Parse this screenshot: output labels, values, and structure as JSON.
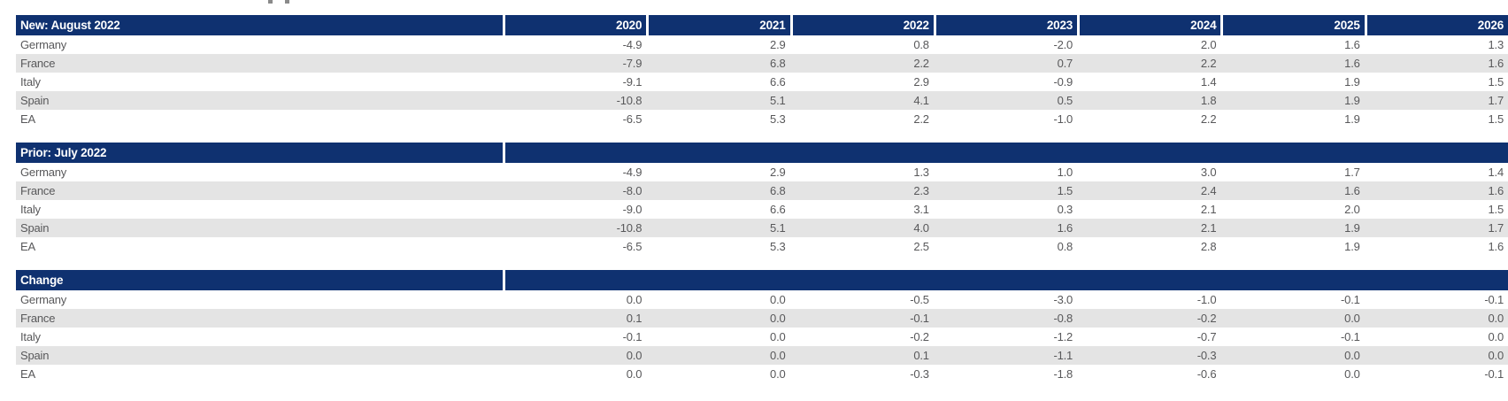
{
  "colors": {
    "header_navy": "#0f3170",
    "row_alt_gray": "#e4e4e4",
    "text_gray": "#58585a",
    "header_text": "#ffffff"
  },
  "chart_data": {
    "type": "table",
    "years": [
      "2020",
      "2021",
      "2022",
      "2023",
      "2024",
      "2025",
      "2026"
    ],
    "sections": [
      {
        "label": "New: August 2022",
        "rows": [
          {
            "name": "Germany",
            "values": [
              "-4.9",
              "2.9",
              "0.8",
              "-2.0",
              "2.0",
              "1.6",
              "1.3"
            ]
          },
          {
            "name": "France",
            "values": [
              "-7.9",
              "6.8",
              "2.2",
              "0.7",
              "2.2",
              "1.6",
              "1.6"
            ]
          },
          {
            "name": "Italy",
            "values": [
              "-9.1",
              "6.6",
              "2.9",
              "-0.9",
              "1.4",
              "1.9",
              "1.5"
            ]
          },
          {
            "name": "Spain",
            "values": [
              "-10.8",
              "5.1",
              "4.1",
              "0.5",
              "1.8",
              "1.9",
              "1.7"
            ]
          },
          {
            "name": "EA",
            "values": [
              "-6.5",
              "5.3",
              "2.2",
              "-1.0",
              "2.2",
              "1.9",
              "1.5"
            ]
          }
        ]
      },
      {
        "label": "Prior: July 2022",
        "rows": [
          {
            "name": "Germany",
            "values": [
              "-4.9",
              "2.9",
              "1.3",
              "1.0",
              "3.0",
              "1.7",
              "1.4"
            ]
          },
          {
            "name": "France",
            "values": [
              "-8.0",
              "6.8",
              "2.3",
              "1.5",
              "2.4",
              "1.6",
              "1.6"
            ]
          },
          {
            "name": "Italy",
            "values": [
              "-9.0",
              "6.6",
              "3.1",
              "0.3",
              "2.1",
              "2.0",
              "1.5"
            ]
          },
          {
            "name": "Spain",
            "values": [
              "-10.8",
              "5.1",
              "4.0",
              "1.6",
              "2.1",
              "1.9",
              "1.7"
            ]
          },
          {
            "name": "EA",
            "values": [
              "-6.5",
              "5.3",
              "2.5",
              "0.8",
              "2.8",
              "1.9",
              "1.6"
            ]
          }
        ]
      },
      {
        "label": "Change",
        "rows": [
          {
            "name": "Germany",
            "values": [
              "0.0",
              "0.0",
              "-0.5",
              "-3.0",
              "-1.0",
              "-0.1",
              "-0.1"
            ]
          },
          {
            "name": "France",
            "values": [
              "0.1",
              "0.0",
              "-0.1",
              "-0.8",
              "-0.2",
              "0.0",
              "0.0"
            ]
          },
          {
            "name": "Italy",
            "values": [
              "-0.1",
              "0.0",
              "-0.2",
              "-1.2",
              "-0.7",
              "-0.1",
              "0.0"
            ]
          },
          {
            "name": "Spain",
            "values": [
              "0.0",
              "0.0",
              "0.1",
              "-1.1",
              "-0.3",
              "0.0",
              "0.0"
            ]
          },
          {
            "name": "EA",
            "values": [
              "0.0",
              "0.0",
              "-0.3",
              "-1.8",
              "-0.6",
              "0.0",
              "-0.1"
            ]
          }
        ]
      }
    ]
  }
}
